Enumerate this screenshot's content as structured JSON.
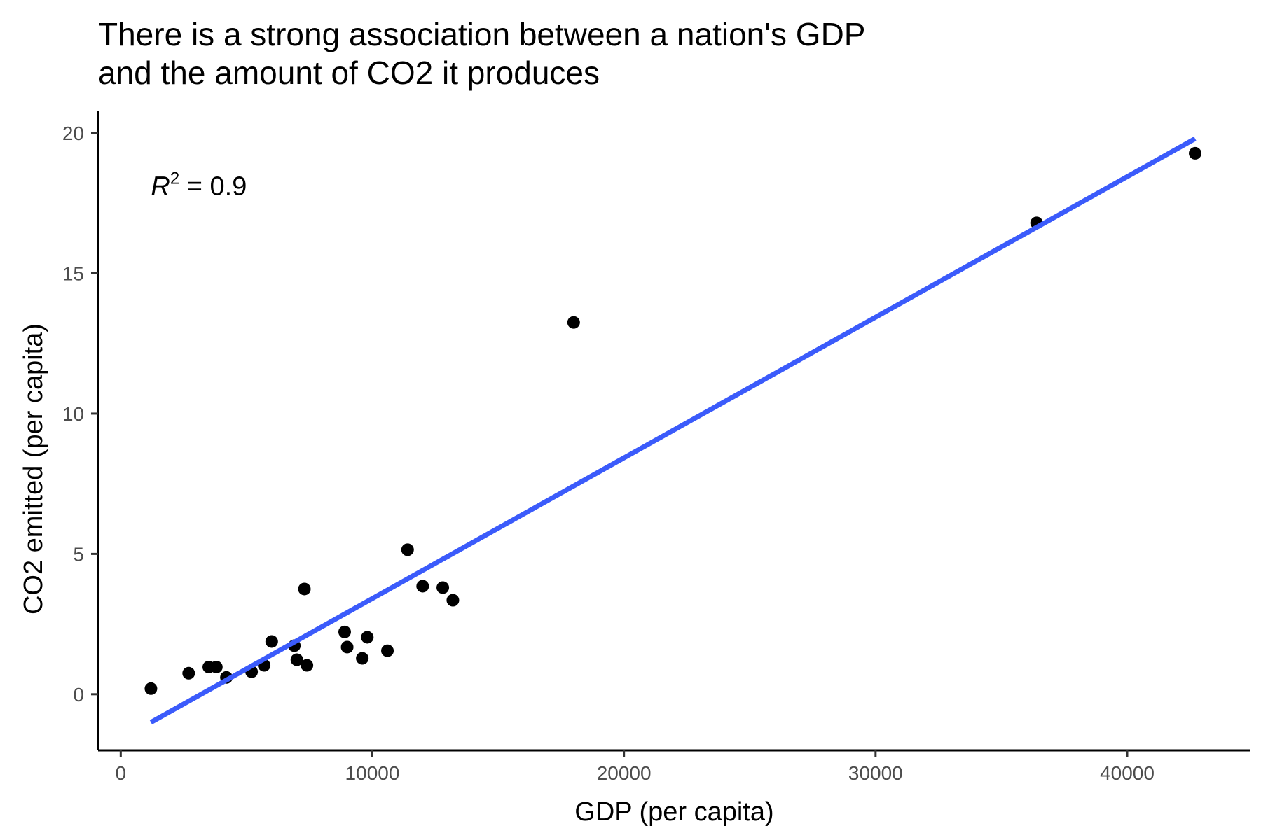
{
  "chart_data": {
    "type": "scatter",
    "title_lines": [
      "There is a strong association between a nation's GDP",
      "and the amount of CO2 it produces"
    ],
    "xlabel": "GDP (per capita)",
    "ylabel": "CO2 emitted (per capita)",
    "xlim": [
      -900,
      44900
    ],
    "ylim": [
      -2.0,
      20.8
    ],
    "x_ticks": [
      0,
      10000,
      20000,
      30000,
      40000
    ],
    "y_ticks": [
      0,
      5,
      10,
      15,
      20
    ],
    "grid": false,
    "legend": "none",
    "annotation": {
      "symbol": "R",
      "exponent": "2",
      "text": " = 0.9",
      "x": 1200,
      "y": 17.8
    },
    "regression_line": {
      "x": [
        1200,
        42700
      ],
      "y": [
        -1.0,
        19.8
      ],
      "color": "#3b5bfb"
    },
    "points_color": "#000000",
    "points": [
      {
        "x": 1200,
        "y": 0.2
      },
      {
        "x": 2700,
        "y": 0.75
      },
      {
        "x": 3500,
        "y": 0.97
      },
      {
        "x": 3800,
        "y": 0.97
      },
      {
        "x": 4200,
        "y": 0.6
      },
      {
        "x": 5200,
        "y": 0.8
      },
      {
        "x": 5700,
        "y": 1.03
      },
      {
        "x": 6000,
        "y": 1.88
      },
      {
        "x": 6900,
        "y": 1.73
      },
      {
        "x": 7000,
        "y": 1.23
      },
      {
        "x": 7300,
        "y": 3.75
      },
      {
        "x": 7400,
        "y": 1.03
      },
      {
        "x": 8900,
        "y": 2.22
      },
      {
        "x": 9000,
        "y": 1.68
      },
      {
        "x": 9600,
        "y": 1.28
      },
      {
        "x": 9800,
        "y": 2.03
      },
      {
        "x": 10600,
        "y": 1.55
      },
      {
        "x": 11400,
        "y": 5.15
      },
      {
        "x": 12000,
        "y": 3.85
      },
      {
        "x": 12800,
        "y": 3.8
      },
      {
        "x": 13200,
        "y": 3.35
      },
      {
        "x": 18000,
        "y": 13.25
      },
      {
        "x": 36400,
        "y": 16.8
      },
      {
        "x": 42700,
        "y": 19.28
      }
    ]
  }
}
